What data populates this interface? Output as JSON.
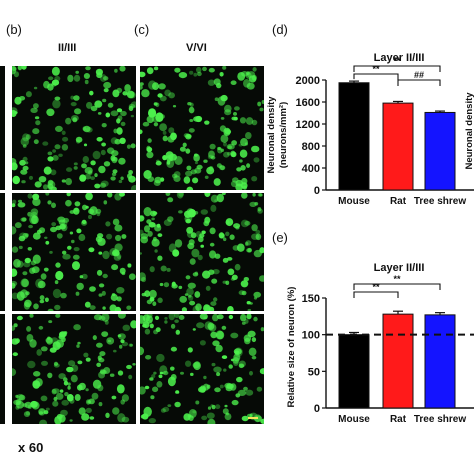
{
  "labels": {
    "b": "(b)",
    "c": "(c)",
    "d": "(d)",
    "e": "(e)",
    "col_b": "II/III",
    "col_c": "V/VI",
    "magnification": "x 60"
  },
  "colors": {
    "mouse": "#000000",
    "rat": "#ff1a1a",
    "tree_shrew": "#1414ff",
    "cells": "#4cf04c",
    "background": "#060a06"
  },
  "chart_data": [
    {
      "type": "bar",
      "panel": "d",
      "title": "Layer II/III",
      "ylabel": "Neuronal density (neurons/mm²)",
      "partial_next_ylabel": "Neuronal density",
      "categories": [
        "Mouse",
        "Rat",
        "Tree shrew"
      ],
      "values": [
        1950,
        1580,
        1410
      ],
      "errors": [
        30,
        30,
        25
      ],
      "ylim": [
        0,
        2000
      ],
      "yticks": [
        "0",
        "400",
        "800",
        "1200",
        "1600",
        "2000"
      ],
      "significance": [
        {
          "from": 0,
          "to": 1,
          "label": "**"
        },
        {
          "from": 1,
          "to": 2,
          "label": "##"
        },
        {
          "from": 0,
          "to": 2,
          "label": "**"
        }
      ]
    },
    {
      "type": "bar",
      "panel": "e",
      "title": "Layer II/III",
      "ylabel": "Relative size of neuron (%)",
      "categories": [
        "Mouse",
        "Rat",
        "Tree shrew"
      ],
      "values": [
        100,
        128,
        127
      ],
      "errors": [
        3,
        4,
        3
      ],
      "ylim": [
        0,
        150
      ],
      "yticks": [
        "0",
        "50",
        "100",
        "150"
      ],
      "reference_line": 100,
      "significance": [
        {
          "from": 0,
          "to": 1,
          "label": "**"
        },
        {
          "from": 0,
          "to": 2,
          "label": "**"
        }
      ]
    }
  ]
}
